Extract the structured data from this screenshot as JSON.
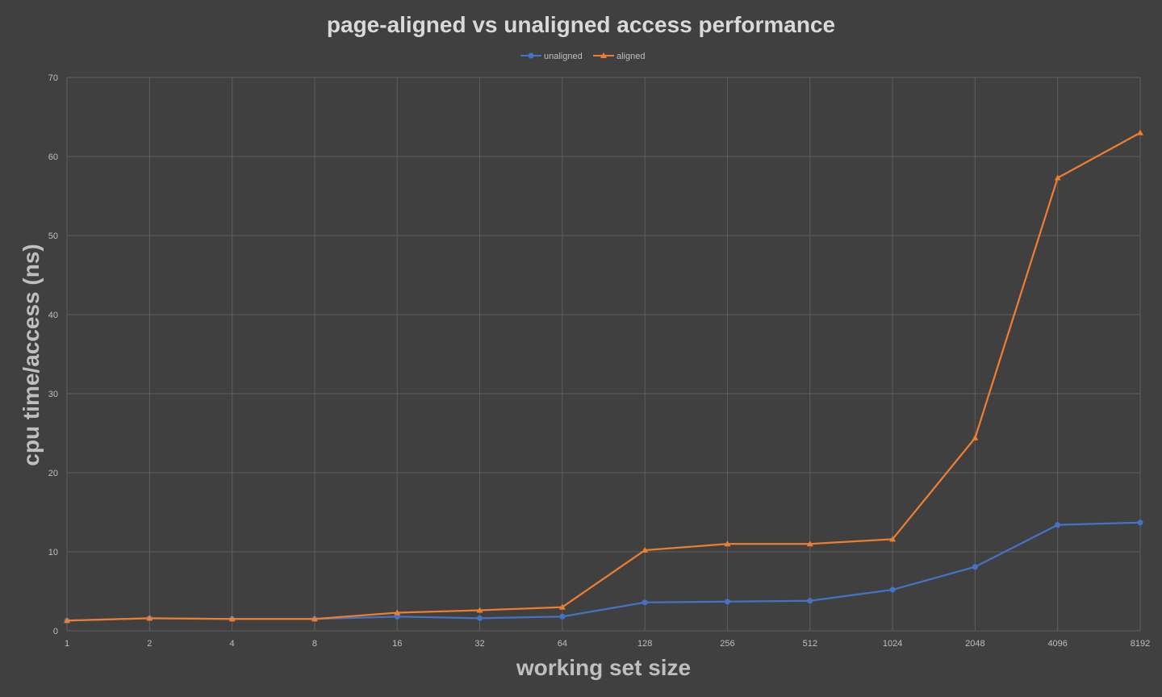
{
  "chart_data": {
    "type": "line",
    "title": "page-aligned vs unaligned access performance",
    "xlabel": "working set size",
    "ylabel": "cpu time/access (ns)",
    "categories": [
      "1",
      "2",
      "4",
      "8",
      "16",
      "32",
      "64",
      "128",
      "256",
      "512",
      "1024",
      "2048",
      "4096",
      "8192"
    ],
    "yticks": [
      "0",
      "10",
      "20",
      "30",
      "40",
      "50",
      "60",
      "70"
    ],
    "ylim": [
      0,
      70
    ],
    "grid": true,
    "legend_position": "top-center",
    "series": [
      {
        "name": "unaligned",
        "marker": "circle",
        "color": "#4472C4",
        "values": [
          1.3,
          1.6,
          1.5,
          1.5,
          1.8,
          1.6,
          1.8,
          3.6,
          3.7,
          3.8,
          5.2,
          8.1,
          13.4,
          13.7
        ]
      },
      {
        "name": "aligned",
        "marker": "triangle",
        "color": "#ED7D31",
        "values": [
          1.3,
          1.6,
          1.5,
          1.5,
          2.3,
          2.6,
          3.0,
          10.2,
          11.0,
          11.0,
          11.6,
          24.4,
          57.3,
          63.0
        ]
      }
    ]
  }
}
